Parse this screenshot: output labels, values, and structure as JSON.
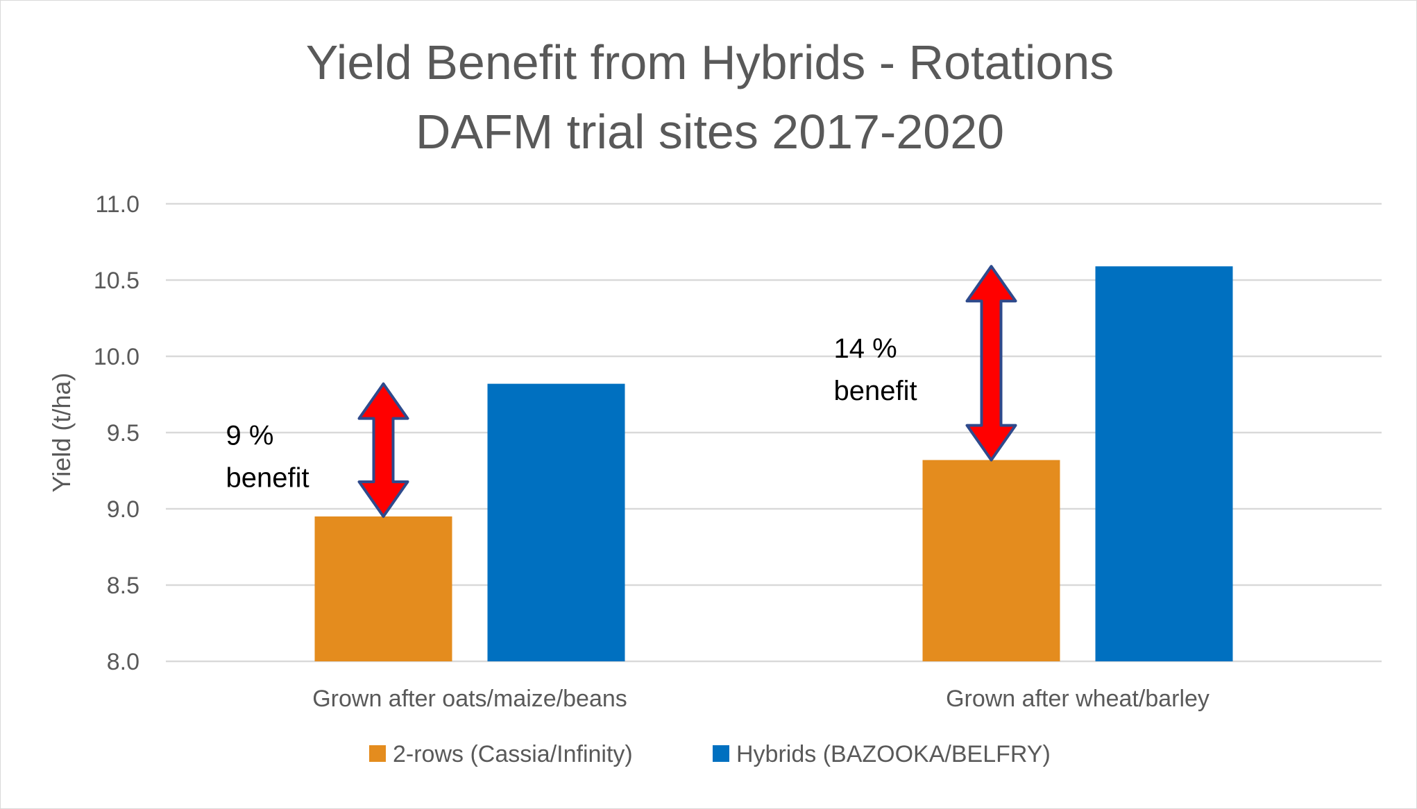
{
  "chart_data": {
    "type": "bar",
    "title_lines": [
      "Yield Benefit from Hybrids - Rotations",
      "DAFM trial sites 2017-2020"
    ],
    "xlabel": "",
    "ylabel": "Yield (t/ha)",
    "ylim": [
      8.0,
      11.0
    ],
    "ytick_step": 0.5,
    "yticks": [
      "8.0",
      "8.5",
      "9.0",
      "9.5",
      "10.0",
      "10.5",
      "11.0"
    ],
    "grid": true,
    "legend_position": "bottom",
    "categories": [
      "Grown after oats/maize/beans",
      "Grown after wheat/barley"
    ],
    "series": [
      {
        "name": "2-rows (Cassia/Infinity)",
        "color": "#E48C1E",
        "values": [
          8.95,
          9.32
        ]
      },
      {
        "name": "Hybrids (BAZOOKA/BELFRY)",
        "color": "#0070C0",
        "values": [
          9.82,
          10.59
        ]
      }
    ],
    "annotations": [
      {
        "category_index": 0,
        "lines": [
          "9 %",
          "benefit"
        ],
        "arrow_color": "#FF0000",
        "arrow_outline": "#2E4A8C"
      },
      {
        "category_index": 1,
        "lines": [
          "14 %",
          "benefit"
        ],
        "arrow_color": "#FF0000",
        "arrow_outline": "#2E4A8C"
      }
    ]
  }
}
